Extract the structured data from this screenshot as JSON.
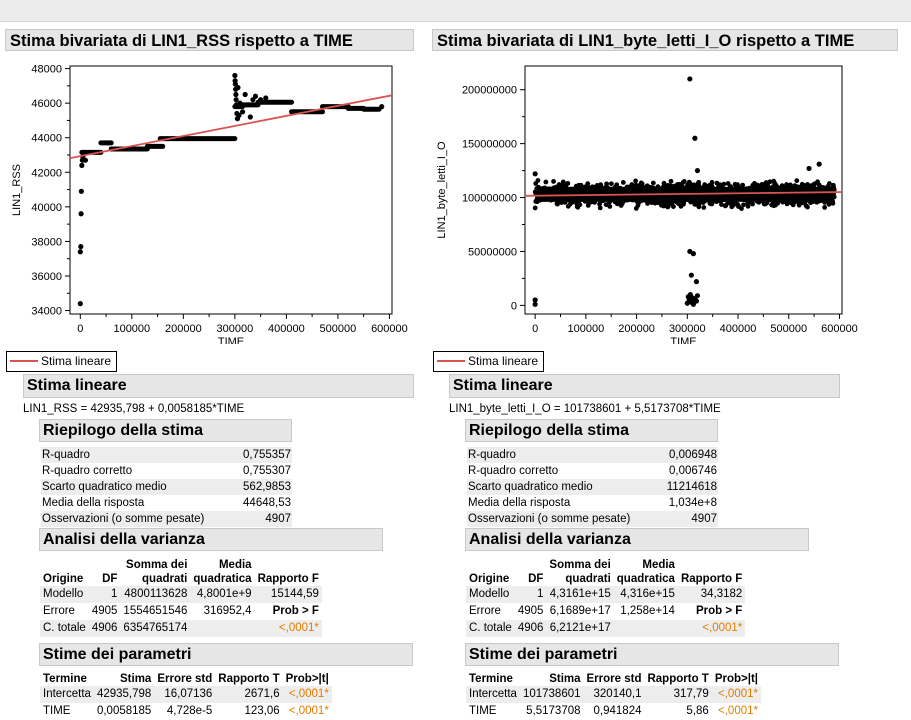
{
  "left": {
    "title": "Stima bivariata di LIN1_RSS rispetto a TIME",
    "chart_data": {
      "type": "scatter",
      "xlabel": "TIME",
      "ylabel": "LIN1_RSS",
      "xlim": [
        -20000,
        605000
      ],
      "ylim": [
        33800,
        48150
      ],
      "xticks": [
        0,
        100000,
        200000,
        300000,
        400000,
        500000,
        600000
      ],
      "xtick_labels": [
        "0",
        "100000",
        "200000",
        "300000",
        "400000",
        "500000",
        "600000"
      ],
      "yticks": [
        34000,
        36000,
        38000,
        40000,
        42000,
        44000,
        46000,
        48000
      ],
      "ytick_labels": [
        "34000",
        "36000",
        "38000",
        "40000",
        "42000",
        "44000",
        "46000",
        "48000"
      ],
      "fit_line": {
        "name": "Stima lineare",
        "intercept": 42935.798,
        "slope": 0.0058185
      },
      "point_groups": [
        {
          "x": [
            0,
            0,
            1000,
            1500,
            2000,
            3000,
            4000,
            5000,
            6000,
            10000
          ],
          "y": [
            34400,
            37400,
            37700,
            39600,
            40900,
            42400,
            42700,
            42900,
            43100,
            42700
          ]
        },
        {
          "x_range": [
            3000,
            40000
          ],
          "y": 43150
        },
        {
          "x_range": [
            40000,
            60000
          ],
          "y": 43700
        },
        {
          "x_range": [
            60000,
            130000
          ],
          "y": 43350
        },
        {
          "x_range": [
            130000,
            160000
          ],
          "y": 43500
        },
        {
          "x_range": [
            155000,
            300000
          ],
          "y": 43950
        },
        {
          "x_range": [
            300000,
            315000
          ],
          "y": 45800
        },
        {
          "x_range": [
            315000,
            345000
          ],
          "y": 45900
        },
        {
          "x_range": [
            345000,
            410000
          ],
          "y": 46050
        },
        {
          "x_range": [
            410000,
            470000
          ],
          "y": 45500
        },
        {
          "x_range": [
            470000,
            520000
          ],
          "y": 45800
        },
        {
          "x_range": [
            520000,
            550000
          ],
          "y": 45700
        },
        {
          "x_range": [
            550000,
            580000
          ],
          "y": 45650
        },
        {
          "x": [
            300000,
            300500,
            301000,
            301500,
            302000,
            302500,
            303000,
            304000,
            305000,
            306000,
            308000,
            310000,
            315000,
            320000,
            330000,
            335000,
            340000,
            350000,
            360000,
            585000
          ],
          "y": [
            47600,
            47300,
            47100,
            46800,
            46500,
            46200,
            45900,
            45400,
            45100,
            46900,
            45300,
            46000,
            45500,
            46500,
            45200,
            46200,
            46400,
            46200,
            46300,
            45800
          ]
        }
      ]
    },
    "legend": "Stima lineare",
    "stima_lineare": {
      "header": "Stima lineare",
      "equation": "LIN1_RSS = 42935,798 + 0,0058185*TIME"
    },
    "riepilogo": {
      "header": "Riepilogo della stima",
      "rows": [
        {
          "label": "R-quadro",
          "value": "0,755357"
        },
        {
          "label": "R-quadro corretto",
          "value": "0,755307"
        },
        {
          "label": "Scarto quadratico medio",
          "value": "562,9853"
        },
        {
          "label": "Media della risposta",
          "value": "44648,53"
        },
        {
          "label": "Osservazioni (o somme pesate)",
          "value": "4907"
        }
      ]
    },
    "anova": {
      "header": "Analisi della varianza",
      "columns": {
        "origine": "Origine",
        "df": "DF",
        "ss1": "Somma dei",
        "ss2": "quadrati",
        "ms1": "Media",
        "ms2": "quadratica",
        "f": "Rapporto F"
      },
      "rows": [
        {
          "origine": "Modello",
          "df": "1",
          "ss": "4800113628",
          "ms": "4,8001e+9",
          "f": "15144,59"
        },
        {
          "origine": "Errore",
          "df": "4905",
          "ss": "1554651546",
          "ms": "316952,4",
          "f": "Prob > F"
        },
        {
          "origine": "C. totale",
          "df": "4906",
          "ss": "6354765174",
          "ms": "",
          "f": "<,0001*"
        }
      ]
    },
    "params": {
      "header": "Stime dei parametri",
      "columns": {
        "termine": "Termine",
        "stima": "Stima",
        "err": "Errore std",
        "t": "Rapporto T",
        "p": "Prob>|t|"
      },
      "rows": [
        {
          "termine": "Intercetta",
          "stima": "42935,798",
          "err": "16,07136",
          "t": "2671,6",
          "p": "<,0001*"
        },
        {
          "termine": "TIME",
          "stima": "0,0058185",
          "err": "4,728e-5",
          "t": "123,06",
          "p": "<,0001*"
        }
      ]
    }
  },
  "right": {
    "title": "Stima bivariata di LIN1_byte_letti_I_O rispetto a TIME",
    "chart_data": {
      "type": "scatter",
      "xlabel": "TIME",
      "ylabel": "LIN1_byte_letti_I_O",
      "xlim": [
        -20000,
        605000
      ],
      "ylim": [
        -8000000,
        222000000
      ],
      "xticks": [
        0,
        100000,
        200000,
        300000,
        400000,
        500000,
        600000
      ],
      "xtick_labels": [
        "0",
        "100000",
        "200000",
        "300000",
        "400000",
        "500000",
        "600000"
      ],
      "yticks": [
        0,
        50000000,
        100000000,
        150000000,
        200000000
      ],
      "ytick_labels": [
        "0",
        "50000000",
        "100000000",
        "150000000",
        "200000000"
      ],
      "fit_line": {
        "name": "Stima lineare",
        "intercept": 101738601,
        "slope": 5.5173708
      },
      "band": {
        "x_range": [
          0,
          590000
        ],
        "y_min": 88000000,
        "y_max": 118000000,
        "center": 103000000
      },
      "outliers": {
        "x": [
          0,
          0,
          305000,
          315000,
          305000,
          312000,
          308000,
          318000,
          300000,
          302000,
          304000,
          306000,
          308000,
          310000,
          312000,
          315000,
          318000,
          320000,
          0,
          320000,
          540000,
          560000
        ],
        "y": [
          5000000,
          1000000,
          210000000,
          155000000,
          50000000,
          48000000,
          28000000,
          22000000,
          2000000,
          8000000,
          5000000,
          10000000,
          3000000,
          7000000,
          1000000,
          6000000,
          4000000,
          9000000,
          122000000,
          125000000,
          127000000,
          131000000
        ]
      }
    },
    "legend": "Stima lineare",
    "stima_lineare": {
      "header": "Stima lineare",
      "equation": "LIN1_byte_letti_I_O = 101738601 + 5,5173708*TIME"
    },
    "riepilogo": {
      "header": "Riepilogo della stima",
      "rows": [
        {
          "label": "R-quadro",
          "value": "0,006948"
        },
        {
          "label": "R-quadro corretto",
          "value": "0,006746"
        },
        {
          "label": "Scarto quadratico medio",
          "value": "11214618"
        },
        {
          "label": "Media della risposta",
          "value": "1,034e+8"
        },
        {
          "label": "Osservazioni (o somme pesate)",
          "value": "4907"
        }
      ]
    },
    "anova": {
      "header": "Analisi della varianza",
      "columns": {
        "origine": "Origine",
        "df": "DF",
        "ss1": "Somma dei",
        "ss2": "quadrati",
        "ms1": "Media",
        "ms2": "quadratica",
        "f": "Rapporto F"
      },
      "rows": [
        {
          "origine": "Modello",
          "df": "1",
          "ss": "4,3161e+15",
          "ms": "4,316e+15",
          "f": "34,3182"
        },
        {
          "origine": "Errore",
          "df": "4905",
          "ss": "6,1689e+17",
          "ms": "1,258e+14",
          "f": "Prob > F"
        },
        {
          "origine": "C. totale",
          "df": "4906",
          "ss": "6,2121e+17",
          "ms": "",
          "f": "<,0001*"
        }
      ]
    },
    "params": {
      "header": "Stime dei parametri",
      "columns": {
        "termine": "Termine",
        "stima": "Stima",
        "err": "Errore std",
        "t": "Rapporto T",
        "p": "Prob>|t|"
      },
      "rows": [
        {
          "termine": "Intercetta",
          "stima": "101738601",
          "err": "320140,1",
          "t": "317,79",
          "p": "<,0001*"
        },
        {
          "termine": "TIME",
          "stima": "5,5173708",
          "err": "0,941824",
          "t": "5,86",
          "p": "<,0001*"
        }
      ]
    }
  },
  "colors": {
    "fit_line": "#d9534f",
    "points": "#000000",
    "p_value": "#e57b00",
    "header_bg": "#e6e6e6"
  }
}
